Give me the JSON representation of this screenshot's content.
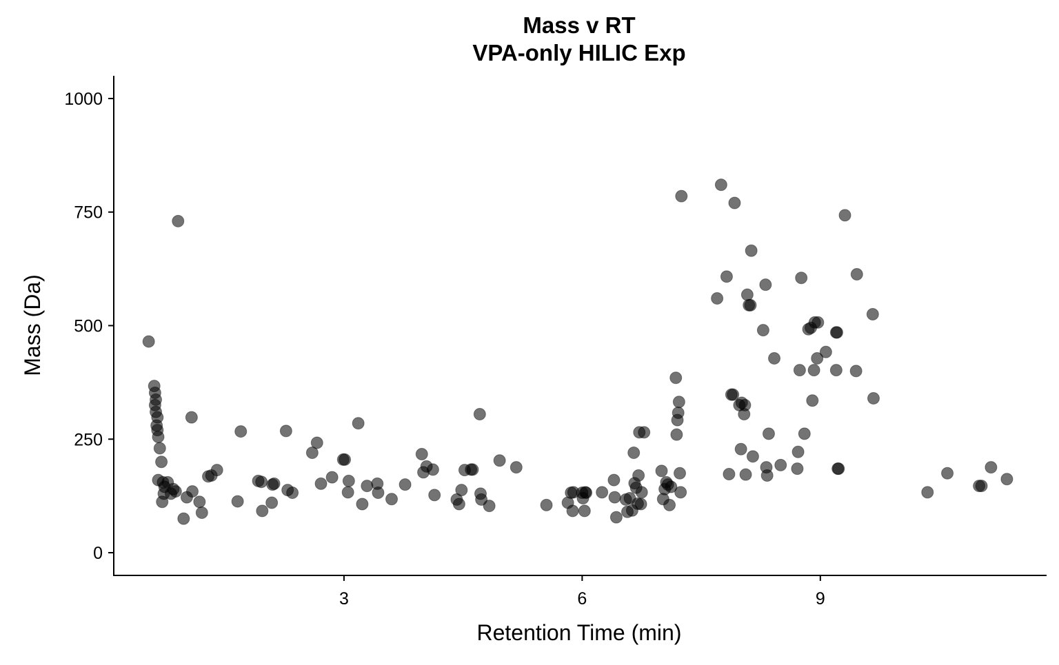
{
  "chart_data": {
    "type": "scatter",
    "title_line1": "Mass v RT",
    "title_line2": "VPA-only HILIC Exp",
    "xlabel": "Retention Time (min)",
    "ylabel": "Mass (Da)",
    "xlim": [
      0.1,
      11.85
    ],
    "ylim": [
      -50,
      1050
    ],
    "x_ticks": [
      3,
      6,
      9
    ],
    "y_ticks": [
      0,
      250,
      500,
      750,
      1000
    ],
    "x_tick_labels": [
      "3",
      "6",
      "9"
    ],
    "y_tick_labels": [
      "0",
      "250",
      "500",
      "750",
      "1000"
    ],
    "grid": false,
    "legend": "none",
    "marker_color": "#000000",
    "marker_opacity": 0.55,
    "points": [
      [
        0.54,
        465
      ],
      [
        0.61,
        367
      ],
      [
        0.62,
        352
      ],
      [
        0.63,
        337
      ],
      [
        0.62,
        325
      ],
      [
        0.63,
        310
      ],
      [
        0.65,
        298
      ],
      [
        0.64,
        280
      ],
      [
        0.65,
        270
      ],
      [
        0.66,
        255
      ],
      [
        0.68,
        230
      ],
      [
        0.7,
        200
      ],
      [
        0.66,
        160
      ],
      [
        0.72,
        155
      ],
      [
        0.78,
        155
      ],
      [
        0.74,
        145
      ],
      [
        0.73,
        130
      ],
      [
        0.71,
        112
      ],
      [
        0.82,
        130
      ],
      [
        0.85,
        140
      ],
      [
        0.88,
        135
      ],
      [
        0.91,
        730
      ],
      [
        1.02,
        122
      ],
      [
        0.98,
        75
      ],
      [
        1.08,
        298
      ],
      [
        1.09,
        135
      ],
      [
        1.18,
        112
      ],
      [
        1.21,
        88
      ],
      [
        1.29,
        168
      ],
      [
        1.33,
        170
      ],
      [
        1.4,
        182
      ],
      [
        1.66,
        113
      ],
      [
        1.7,
        267
      ],
      [
        1.92,
        158
      ],
      [
        1.96,
        156
      ],
      [
        1.97,
        92
      ],
      [
        2.09,
        110
      ],
      [
        2.1,
        150
      ],
      [
        2.12,
        152
      ],
      [
        2.27,
        268
      ],
      [
        2.29,
        138
      ],
      [
        2.35,
        132
      ],
      [
        2.6,
        220
      ],
      [
        2.66,
        242
      ],
      [
        2.71,
        152
      ],
      [
        2.85,
        166
      ],
      [
        2.99,
        205
      ],
      [
        3.01,
        205
      ],
      [
        3.05,
        133
      ],
      [
        3.06,
        158
      ],
      [
        3.18,
        285
      ],
      [
        3.23,
        107
      ],
      [
        3.29,
        147
      ],
      [
        3.42,
        152
      ],
      [
        3.43,
        132
      ],
      [
        3.6,
        118
      ],
      [
        3.77,
        150
      ],
      [
        3.98,
        217
      ],
      [
        4.0,
        177
      ],
      [
        4.04,
        190
      ],
      [
        4.12,
        183
      ],
      [
        4.14,
        127
      ],
      [
        4.42,
        117
      ],
      [
        4.45,
        107
      ],
      [
        4.48,
        138
      ],
      [
        4.52,
        182
      ],
      [
        4.6,
        183
      ],
      [
        4.62,
        183
      ],
      [
        4.71,
        305
      ],
      [
        4.72,
        130
      ],
      [
        4.73,
        117
      ],
      [
        4.83,
        103
      ],
      [
        4.96,
        203
      ],
      [
        5.17,
        188
      ],
      [
        5.55,
        105
      ],
      [
        5.82,
        110
      ],
      [
        5.86,
        132
      ],
      [
        5.88,
        92
      ],
      [
        5.89,
        133
      ],
      [
        6.0,
        132
      ],
      [
        6.01,
        120
      ],
      [
        6.03,
        92
      ],
      [
        6.04,
        133
      ],
      [
        6.05,
        132
      ],
      [
        6.25,
        133
      ],
      [
        6.4,
        160
      ],
      [
        6.41,
        122
      ],
      [
        6.43,
        78
      ],
      [
        6.55,
        117
      ],
      [
        6.57,
        90
      ],
      [
        6.6,
        120
      ],
      [
        6.63,
        93
      ],
      [
        6.65,
        220
      ],
      [
        6.66,
        153
      ],
      [
        6.68,
        143
      ],
      [
        6.7,
        108
      ],
      [
        6.71,
        170
      ],
      [
        6.72,
        265
      ],
      [
        6.74,
        107
      ],
      [
        6.75,
        133
      ],
      [
        6.78,
        265
      ],
      [
        7.0,
        180
      ],
      [
        7.02,
        118
      ],
      [
        7.04,
        140
      ],
      [
        7.06,
        155
      ],
      [
        7.08,
        150
      ],
      [
        7.1,
        105
      ],
      [
        7.12,
        145
      ],
      [
        7.18,
        385
      ],
      [
        7.19,
        260
      ],
      [
        7.2,
        292
      ],
      [
        7.21,
        308
      ],
      [
        7.22,
        332
      ],
      [
        7.23,
        175
      ],
      [
        7.24,
        133
      ],
      [
        7.25,
        785
      ],
      [
        7.7,
        560
      ],
      [
        7.75,
        810
      ],
      [
        7.82,
        608
      ],
      [
        7.85,
        173
      ],
      [
        7.88,
        348
      ],
      [
        7.9,
        348
      ],
      [
        7.92,
        770
      ],
      [
        7.98,
        325
      ],
      [
        8.0,
        228
      ],
      [
        8.01,
        330
      ],
      [
        8.04,
        305
      ],
      [
        8.05,
        325
      ],
      [
        8.06,
        172
      ],
      [
        8.08,
        568
      ],
      [
        8.1,
        545
      ],
      [
        8.12,
        545
      ],
      [
        8.13,
        665
      ],
      [
        8.15,
        212
      ],
      [
        8.28,
        490
      ],
      [
        8.31,
        590
      ],
      [
        8.32,
        188
      ],
      [
        8.33,
        170
      ],
      [
        8.35,
        262
      ],
      [
        8.42,
        428
      ],
      [
        8.5,
        193
      ],
      [
        8.71,
        185
      ],
      [
        8.72,
        222
      ],
      [
        8.74,
        402
      ],
      [
        8.76,
        605
      ],
      [
        8.8,
        262
      ],
      [
        8.85,
        492
      ],
      [
        8.88,
        495
      ],
      [
        8.9,
        335
      ],
      [
        8.92,
        402
      ],
      [
        8.93,
        507
      ],
      [
        8.96,
        428
      ],
      [
        8.97,
        507
      ],
      [
        9.07,
        442
      ],
      [
        9.2,
        485
      ],
      [
        9.21,
        485
      ],
      [
        9.22,
        185
      ],
      [
        9.23,
        185
      ],
      [
        9.2,
        402
      ],
      [
        9.31,
        743
      ],
      [
        9.45,
        400
      ],
      [
        9.46,
        613
      ],
      [
        9.66,
        525
      ],
      [
        9.67,
        340
      ],
      [
        10.35,
        133
      ],
      [
        10.6,
        175
      ],
      [
        11.0,
        147
      ],
      [
        11.03,
        147
      ],
      [
        11.15,
        188
      ],
      [
        11.35,
        162
      ]
    ]
  }
}
